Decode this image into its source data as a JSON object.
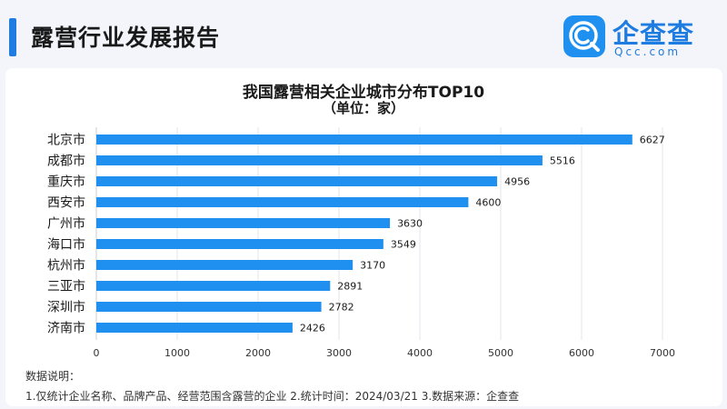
{
  "header": {
    "title": "露营行业发展报告"
  },
  "logo": {
    "brand": "企查查",
    "domain": "Qcc.com",
    "icon": "qcc-logo-icon"
  },
  "notes": {
    "heading": "数据说明：",
    "body": "1.仅统计企业名称、品牌产品、经营范围含露营的企业  2.统计时间：2024/03/21    3.数据来源：企查查"
  },
  "colors": {
    "bar": "#1f8ff0",
    "accent": "#1f7ce0",
    "grid": "#e3e6eb"
  },
  "chart_data": {
    "type": "bar",
    "orientation": "horizontal",
    "title": "我国露营相关企业城市分布TOP10",
    "subtitle": "（单位：家）",
    "categories": [
      "北京市",
      "成都市",
      "重庆市",
      "西安市",
      "广州市",
      "海口市",
      "杭州市",
      "三亚市",
      "深圳市",
      "济南市"
    ],
    "values": [
      6627,
      5516,
      4956,
      4600,
      3630,
      3549,
      3170,
      2891,
      2782,
      2426
    ],
    "xlim": [
      0,
      7000
    ],
    "xticks": [
      "0",
      "1000",
      "2000",
      "3000",
      "4000",
      "5000",
      "6000",
      "7000"
    ],
    "grid": true,
    "data_labels": true
  }
}
